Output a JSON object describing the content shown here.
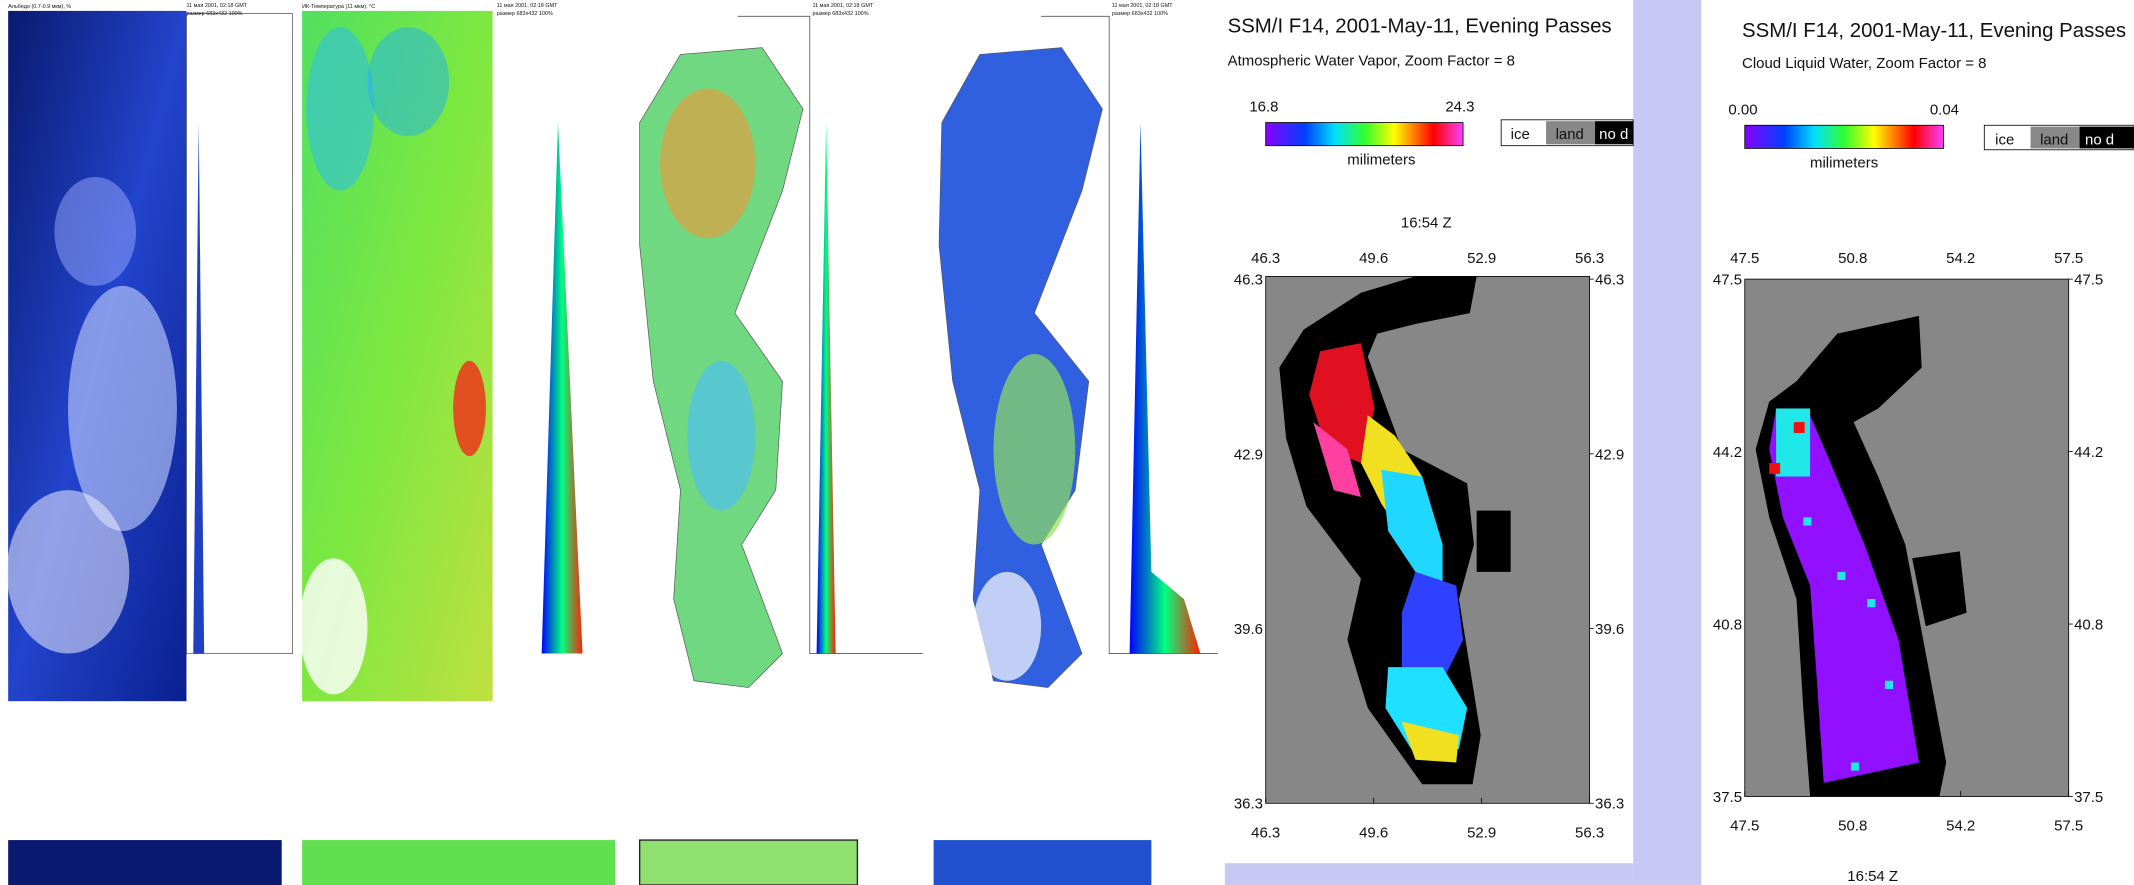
{
  "left_panels": [
    {
      "title": "Альбедо (0.7-0.9 мкм), %",
      "date": "11 мая 2001, 02:18 GMT",
      "size": "размер 683x432 100%"
    },
    {
      "title": "ИК-Температура (11 мкм), °C",
      "date": "11 мая 2001, 02:18 GMT",
      "size": "размер 683x432 100%"
    },
    {
      "title": "",
      "date": "11 мая 2001, 02:18 GMT",
      "size": "размер 683x432 100%"
    },
    {
      "title": "",
      "date": "11 мая 2001, 02:18 GMT",
      "size": "размер 683x432 100%"
    }
  ],
  "maps": [
    {
      "title": "SSM/I F14, 2001-May-11, Evening Passes",
      "subtitle": "Atmospheric Water Vapor,  Zoom Factor = 8",
      "scale_min": "16.8",
      "scale_max": "24.3",
      "unit": "milimeters",
      "legend": [
        "ice",
        "land",
        "no d"
      ],
      "time": "16:54 Z",
      "x_ticks": [
        "46.3",
        "49.6",
        "52.9",
        "56.3"
      ],
      "y_ticks": [
        "46.3",
        "42.9",
        "39.6",
        "36.3"
      ]
    },
    {
      "title": "SSM/I F14, 2001-May-11, Evening Passes",
      "subtitle": "Cloud Liquid Water,  Zoom Factor = 8",
      "scale_min": "0.00",
      "scale_max": "0.04",
      "unit": "milimeters",
      "legend": [
        "ice",
        "land",
        "no d"
      ],
      "time": "16:54 Z",
      "x_ticks": [
        "47.5",
        "50.8",
        "54.2",
        "57.5"
      ],
      "y_ticks": [
        "47.5",
        "44.2",
        "40.8",
        "37.5"
      ]
    }
  ]
}
